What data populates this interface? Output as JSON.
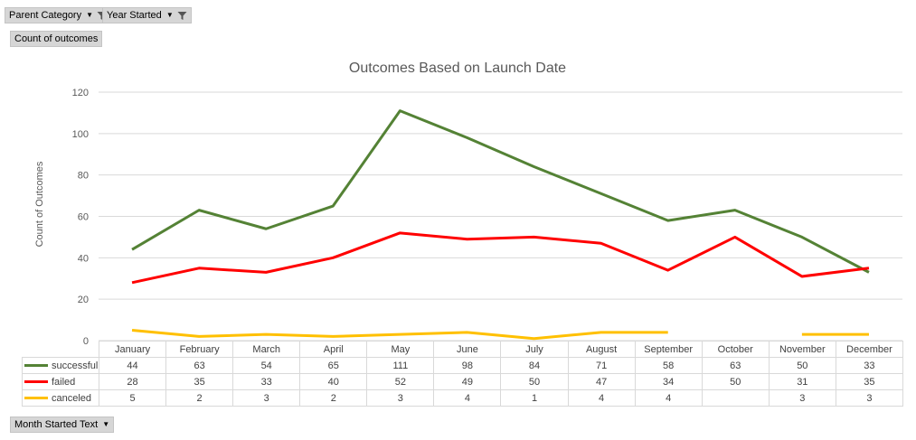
{
  "filters": {
    "parent_category": "Parent Category",
    "year_started": "Year Started",
    "value_field": "Count of outcomes",
    "axis_field": "Month Started Text"
  },
  "colors": {
    "successful": "#548235",
    "failed": "#ff0000",
    "canceled": "#ffc000",
    "grid": "#d9d9d9",
    "text": "#595959"
  },
  "chart_data": {
    "type": "line",
    "title": "Outcomes Based on Launch Date",
    "ylabel": "Count of Outcomes",
    "xlabel": "",
    "ylim": [
      0,
      120
    ],
    "yticks": [
      0,
      20,
      40,
      60,
      80,
      100,
      120
    ],
    "grid": true,
    "legend": "data-table",
    "categories": [
      "January",
      "February",
      "March",
      "April",
      "May",
      "June",
      "July",
      "August",
      "September",
      "October",
      "November",
      "December"
    ],
    "series": [
      {
        "name": "successful",
        "values": [
          44,
          63,
          54,
          65,
          111,
          98,
          84,
          71,
          58,
          63,
          50,
          33
        ]
      },
      {
        "name": "failed",
        "values": [
          28,
          35,
          33,
          40,
          52,
          49,
          50,
          47,
          34,
          50,
          31,
          35
        ]
      },
      {
        "name": "canceled",
        "values": [
          5,
          2,
          3,
          2,
          3,
          4,
          1,
          4,
          4,
          null,
          3,
          3
        ]
      }
    ]
  }
}
